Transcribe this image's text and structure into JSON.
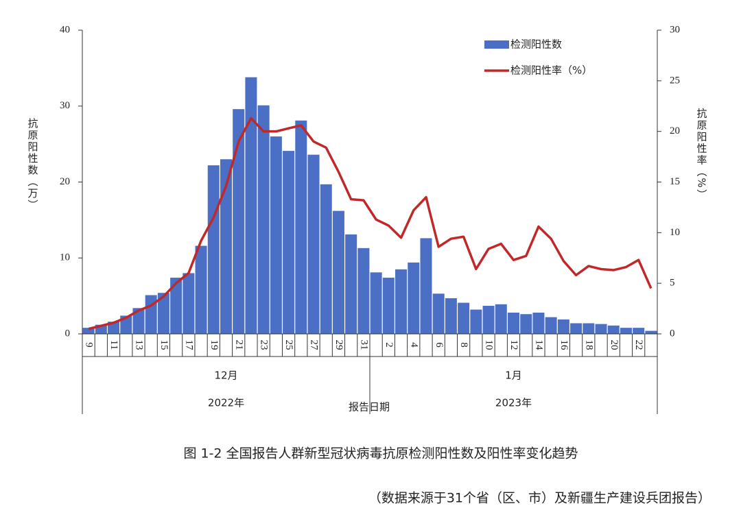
{
  "chart_data": {
    "type": "bar_line",
    "categories": [
      "9",
      null,
      "11",
      null,
      "13",
      null,
      "15",
      null,
      "17",
      null,
      "19",
      null,
      "21",
      null,
      "23",
      null,
      "25",
      null,
      "27",
      null,
      "29",
      null,
      "31",
      null,
      "2",
      null,
      "4",
      null,
      "6",
      null,
      "8",
      null,
      "10",
      null,
      "12",
      null,
      "14",
      null,
      "16",
      null,
      "18",
      null,
      "20",
      null,
      "22",
      null
    ],
    "x_groups": [
      {
        "month": "12月",
        "year": "2022年"
      },
      {
        "month": "1月",
        "year": "2023年"
      }
    ],
    "x_label": "报告日期",
    "y_label": "抗原阳性数（万）",
    "y2_label": "抗原阳性率（%）",
    "series": [
      {
        "name": "检测阳性数",
        "color": "#4a6fc4",
        "kind": "bar",
        "axis": "y",
        "values": [
          0.8,
          1.2,
          1.6,
          2.4,
          3.4,
          5.1,
          5.4,
          7.4,
          8.0,
          11.6,
          22.2,
          23.0,
          29.6,
          33.8,
          30.1,
          26.0,
          24.1,
          28.1,
          23.6,
          19.7,
          16.2,
          13.1,
          11.3,
          8.1,
          7.4,
          8.5,
          9.4,
          12.6,
          5.3,
          4.7,
          4.1,
          3.2,
          3.7,
          3.9,
          2.8,
          2.6,
          2.8,
          2.2,
          1.9,
          1.4,
          1.4,
          1.3,
          1.1,
          0.8,
          0.8,
          0.4
        ]
      },
      {
        "name": "检测阳性率（%）",
        "color": "#c0282a",
        "kind": "line",
        "axis": "y2",
        "values": [
          0.5,
          0.8,
          1.1,
          1.6,
          2.3,
          2.8,
          3.7,
          5.0,
          6.0,
          9.2,
          11.5,
          14.6,
          19.0,
          21.3,
          20.0,
          20.0,
          20.3,
          20.6,
          19.0,
          18.4,
          16.0,
          13.3,
          13.2,
          11.3,
          10.7,
          9.5,
          12.2,
          13.5,
          8.6,
          9.4,
          9.6,
          6.4,
          8.4,
          8.9,
          7.3,
          7.7,
          10.6,
          9.4,
          7.2,
          5.8,
          6.7,
          6.4,
          6.3,
          6.6,
          7.3,
          4.5
        ]
      }
    ],
    "ylim": [
      0,
      40
    ],
    "yticks": [
      0,
      10,
      20,
      30,
      40
    ],
    "y2lim": [
      0,
      30
    ],
    "y2ticks": [
      0,
      5,
      10,
      15,
      20,
      25,
      30
    ],
    "legend": "upper right",
    "grid": false,
    "caption": "图 1-2 全国报告人群新型冠状病毒抗原检测阳性数及阳性率变化趋势",
    "source": "（数据来源于31个省（区、市）及新疆生产建设兵团报告）"
  }
}
